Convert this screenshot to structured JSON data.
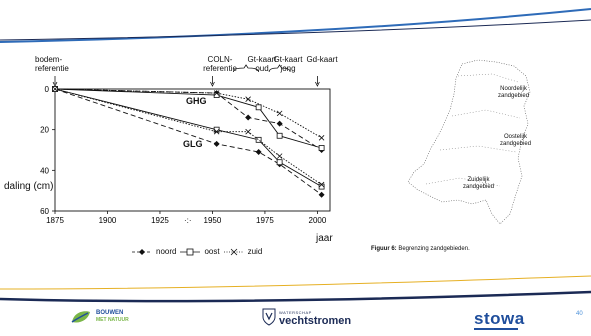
{
  "chart_data": {
    "type": "line",
    "xlabel": "jaar",
    "ylabel": "daling (cm)",
    "x_ticks": [
      1875,
      1900,
      1925,
      1950,
      1975,
      2000
    ],
    "y_ticks": [
      0,
      20,
      40,
      60
    ],
    "xlim": [
      1875,
      2006
    ],
    "ylim": [
      0,
      60
    ],
    "y_inverted": true,
    "grid": false,
    "legend_position": "bottom",
    "extra_tick_symbol": "·:·",
    "group_labels": [
      "GHG",
      "GLG"
    ],
    "annotations": [
      {
        "text": "bodem-\nreferentie",
        "x": 1875
      },
      {
        "text": "COLN-\nreferentie",
        "x": 1950
      },
      {
        "text": "Gt-kaart\noud",
        "x": 1967
      },
      {
        "text": "Gt-kaart\njong",
        "x": 1982
      },
      {
        "text": "Gd-kaart",
        "x": 2000
      }
    ],
    "series": [
      {
        "name": "noord",
        "marker": "diamond",
        "style": "dashed",
        "group": "GHG",
        "x": [
          1875,
          1952,
          1967,
          1982,
          2002
        ],
        "y": [
          0,
          2,
          14,
          17,
          30
        ]
      },
      {
        "name": "oost",
        "marker": "square",
        "style": "solid",
        "group": "GHG",
        "x": [
          1875,
          1952,
          1972,
          1982,
          2002
        ],
        "y": [
          0,
          3,
          9,
          23,
          29
        ]
      },
      {
        "name": "zuid",
        "marker": "x",
        "style": "dotted",
        "group": "GHG",
        "x": [
          1875,
          1952,
          1967,
          1982,
          2002
        ],
        "y": [
          0,
          2,
          5,
          12,
          24
        ]
      },
      {
        "name": "noord",
        "marker": "diamond",
        "style": "dashed",
        "group": "GLG",
        "x": [
          1875,
          1952,
          1972,
          1982,
          2002
        ],
        "y": [
          0,
          27,
          31,
          37,
          52
        ]
      },
      {
        "name": "oost",
        "marker": "square",
        "style": "solid",
        "group": "GLG",
        "x": [
          1875,
          1952,
          1972,
          1982,
          2002
        ],
        "y": [
          0,
          20,
          25,
          36,
          48
        ]
      },
      {
        "name": "zuid",
        "marker": "x",
        "style": "dotted",
        "group": "GLG",
        "x": [
          1875,
          1952,
          1967,
          1982,
          2002
        ],
        "y": [
          0,
          21,
          21,
          33,
          47
        ]
      }
    ],
    "legend": [
      {
        "name": "noord",
        "marker": "diamond",
        "style": "dashed"
      },
      {
        "name": "oost",
        "marker": "square",
        "style": "solid"
      },
      {
        "name": "zuid",
        "marker": "x",
        "style": "dotted"
      }
    ]
  },
  "map": {
    "regions": [
      {
        "label": "Noordelijk\nzandgebied"
      },
      {
        "label": "Oostelijk\nzandgebied"
      },
      {
        "label": "Zuidelijk\nzandgebied"
      }
    ]
  },
  "caption": {
    "label": "Figuur 6:",
    "text": "Begrenzing zandgebieden."
  },
  "footer": {
    "logo_left_line1": "BOUWEN",
    "logo_left_line2": "MET NATUUR",
    "logo_center_small": "WATERSCHAP",
    "logo_center": "vechtstromen",
    "logo_right": "stowa",
    "page_number": "40"
  },
  "colors": {
    "accent_blue": "#2e6bb8",
    "navy": "#1b2a55",
    "gold": "#e6b024",
    "green": "#7ab648",
    "stowa_blue": "#1f4e9c"
  }
}
